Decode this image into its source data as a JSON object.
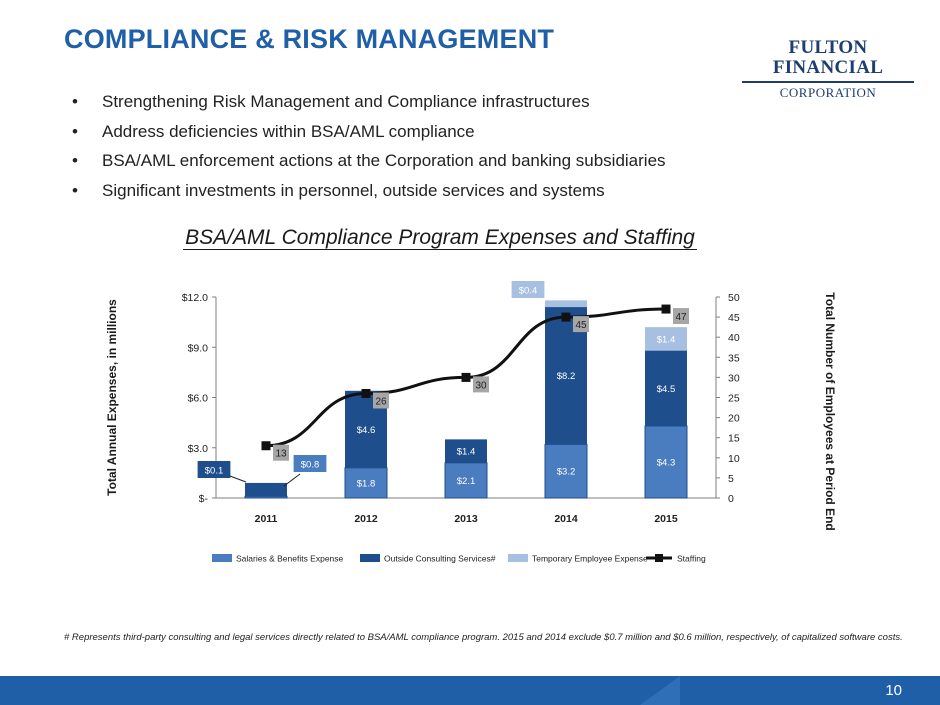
{
  "slide": {
    "title": "COMPLIANCE & RISK MANAGEMENT",
    "logo_top": "FULTON FINANCIAL",
    "logo_bottom": "CORPORATION",
    "bullets": [
      "Strengthening Risk Management and Compliance infrastructures",
      "Address deficiencies within BSA/AML compliance",
      "BSA/AML enforcement actions at the Corporation and banking subsidiaries",
      "Significant investments in personnel, outside services and systems"
    ],
    "bullet_glyph": "•",
    "footnote": "# Represents third-party consulting and legal services directly related to BSA/AML compliance program. 2015 and 2014 exclude $0.7 million and $0.6 million, respectively,  of capitalized software costs.",
    "page_number": "10"
  },
  "colors": {
    "title": "#1f5fa8",
    "salaries": "#4a7cc0",
    "outside": "#1f4e8c",
    "temporary": "#a7bfe0",
    "staffing": "#111111",
    "label_box": "#a6a6a6",
    "footer": "#1f5fa8"
  },
  "chart_data": {
    "type": "bar",
    "stacked": true,
    "title": "BSA/AML Compliance Program Expenses and Staffing",
    "categories": [
      "2011",
      "2012",
      "2013",
      "2014",
      "2015"
    ],
    "series": [
      {
        "name": "Salaries & Benefits Expense",
        "values": [
          0.1,
          1.8,
          2.1,
          3.2,
          4.3
        ],
        "labels": [
          "$0.1",
          "$1.8",
          "$2.1",
          "$3.2",
          "$4.3"
        ]
      },
      {
        "name": "Outside Consulting Services#",
        "values": [
          0.8,
          4.6,
          1.4,
          8.2,
          4.5
        ],
        "labels": [
          "$0.8",
          "$4.6",
          "$1.4",
          "$8.2",
          "$4.5"
        ]
      },
      {
        "name": "Temporary Employee Expense",
        "values": [
          0,
          0,
          0,
          0.4,
          1.4
        ],
        "labels": [
          "",
          "",
          "",
          "$0.4",
          "$1.4"
        ]
      }
    ],
    "line_series": {
      "name": "Staffing",
      "axis": "right",
      "values": [
        13,
        26,
        30,
        45,
        47
      ],
      "labels": [
        "13",
        "26",
        "30",
        "45",
        "47"
      ]
    },
    "ylabel": "Total Annual Expenses, in millions",
    "y2label": "Total Number of Employees at Period End",
    "ylim": [
      0,
      12
    ],
    "yticks": [
      0,
      3,
      6,
      9,
      12
    ],
    "ytick_labels": [
      "$-",
      "$3.0",
      "$6.0",
      "$9.0",
      "$12.0"
    ],
    "y2lim": [
      0,
      50
    ],
    "y2ticks": [
      0,
      5,
      10,
      15,
      20,
      25,
      30,
      35,
      40,
      45,
      50
    ],
    "y2tick_labels": [
      "0",
      "5",
      "10",
      "15",
      "20",
      "25",
      "30",
      "35",
      "40",
      "45",
      "50"
    ],
    "legend": "bottom",
    "grid": false
  }
}
